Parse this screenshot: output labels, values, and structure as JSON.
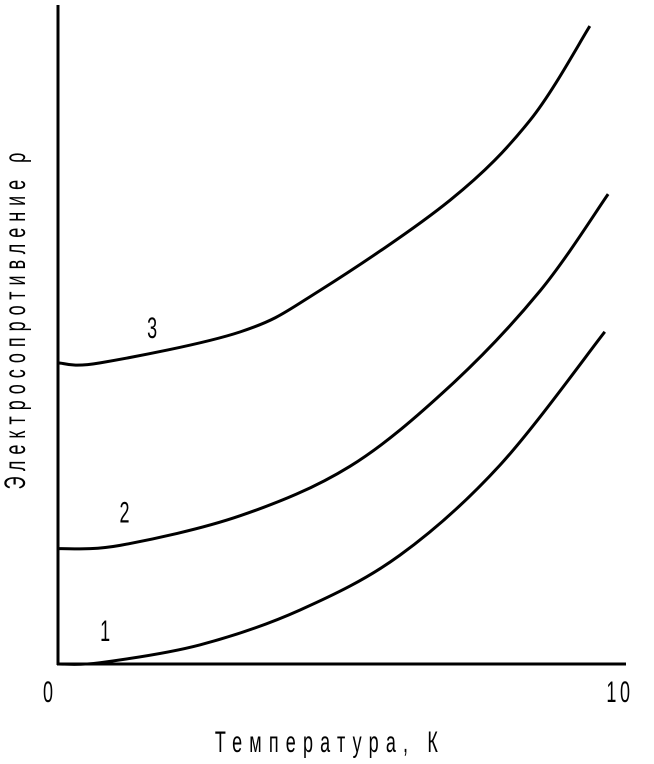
{
  "chart_data": {
    "type": "line",
    "title": "",
    "xlabel": "Температура, К",
    "ylabel": "Электросопротивление ρ",
    "xlim": [
      0,
      10
    ],
    "ylim": [
      0,
      100
    ],
    "x_ticks": [
      "0",
      "10"
    ],
    "grid": false,
    "legend": "none",
    "series": [
      {
        "name": "1",
        "x": [
          0,
          0.76,
          2.56,
          4.37,
          6.17,
          7.98,
          9.87
        ],
        "y": [
          0,
          0.2,
          2.9,
          8.2,
          16.5,
          30.2,
          50.4
        ],
        "label_at": [
          0.85,
          3.5
        ]
      },
      {
        "name": "2",
        "x": [
          0,
          1.12,
          3.29,
          5.27,
          7.08,
          8.7,
          9.93
        ],
        "y": [
          17.5,
          18,
          22.5,
          30.0,
          42.2,
          56.6,
          71.3
        ],
        "label_at": [
          1.2,
          21.5
        ]
      },
      {
        "name": "3",
        "x": [
          0,
          0.76,
          3.29,
          4.73,
          7.08,
          8.52,
          9.6
        ],
        "y": [
          45.7,
          45.7,
          50.4,
          56.7,
          70.4,
          82.5,
          96.8
        ],
        "label_at": [
          1.7,
          49.5
        ]
      }
    ],
    "color": "#000000"
  }
}
